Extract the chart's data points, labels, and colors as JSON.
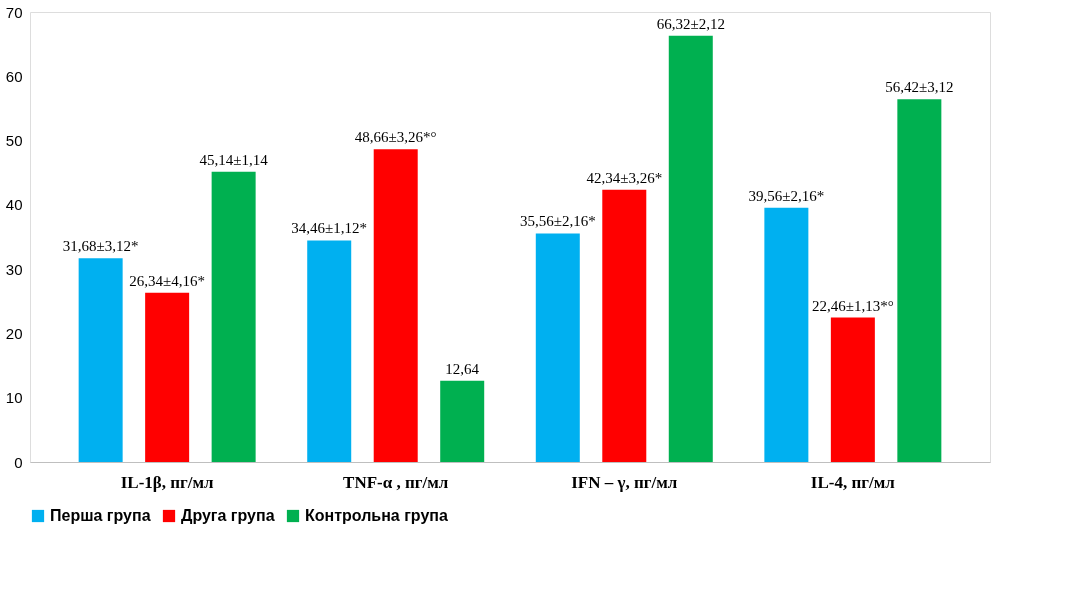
{
  "chart_data": {
    "type": "bar",
    "categories": [
      "IL-1β, пг/мл",
      "TNF-α , пг/мл",
      "IFN – γ, пг/мл",
      "IL-4, пг/мл"
    ],
    "series": [
      {
        "name": "Перша група",
        "color": "#00b0f0",
        "values": [
          31.68,
          34.46,
          35.56,
          39.56
        ],
        "value_labels": [
          "31,68±3,12*",
          "34,46±1,12*",
          "35,56±2,16*",
          "39,56±2,16*"
        ]
      },
      {
        "name": "Друга група",
        "color": "#ff0000",
        "values": [
          26.34,
          48.66,
          42.34,
          22.46
        ],
        "value_labels": [
          "26,34±4,16*",
          "48,66±3,26*°",
          "42,34±3,26*",
          "22,46±1,13*°"
        ]
      },
      {
        "name": "Контрольна група",
        "color": "#00b050",
        "values": [
          45.14,
          12.64,
          66.32,
          56.42
        ],
        "value_labels": [
          "45,14±1,14",
          "12,64",
          "66,32±2,12",
          "56,42±3,12"
        ]
      }
    ],
    "ylim": [
      0,
      70
    ],
    "yticks": [
      0,
      10,
      20,
      30,
      40,
      50,
      60,
      70
    ],
    "grid": false,
    "legend": "bottom"
  }
}
